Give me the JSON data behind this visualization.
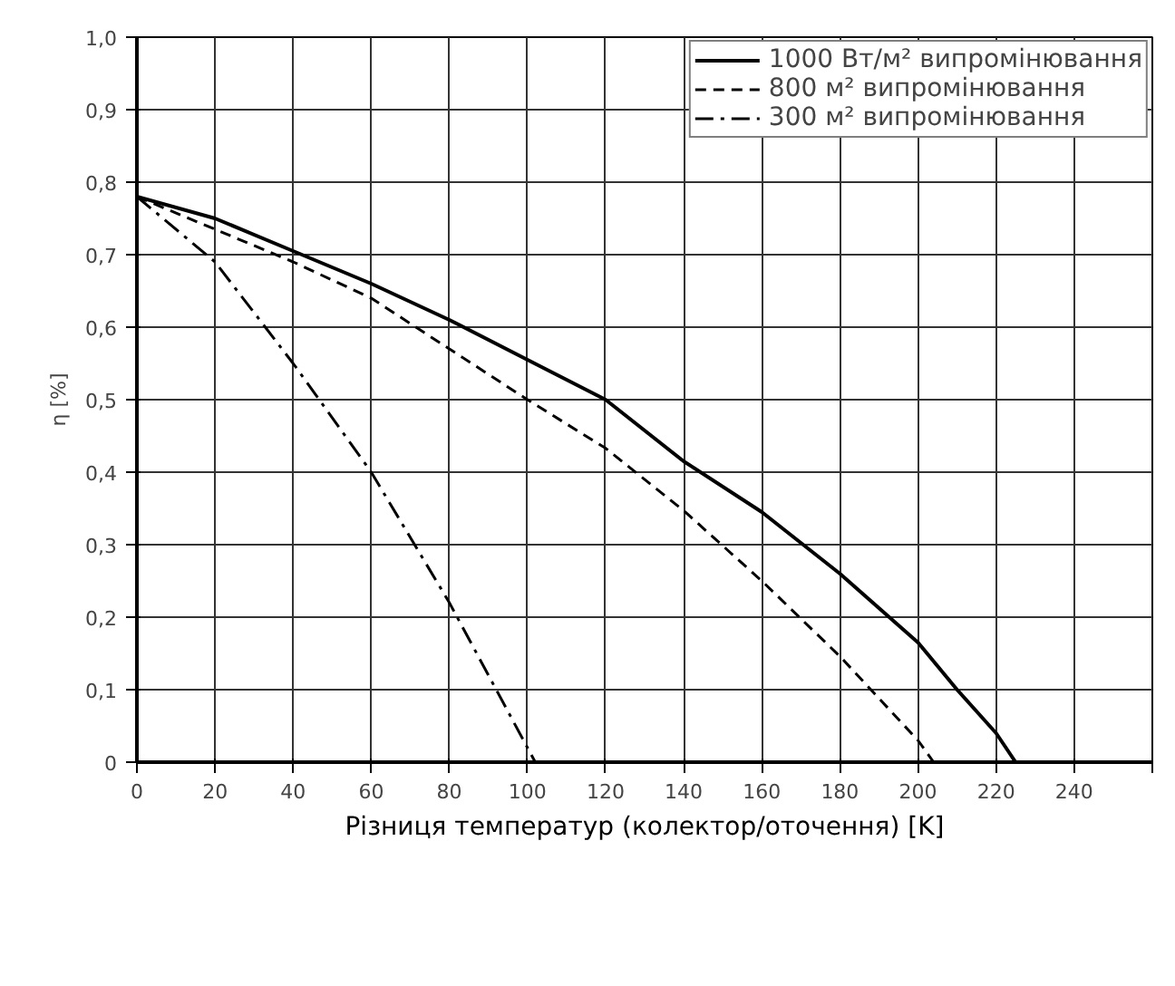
{
  "chart_data": {
    "type": "line",
    "xlabel": "Різниця температур (колектор/оточення) [K]",
    "ylabel": "η [%]",
    "xlim": [
      0,
      260
    ],
    "ylim": [
      0,
      1.0
    ],
    "xticks": [
      0,
      20,
      40,
      60,
      80,
      100,
      120,
      140,
      160,
      180,
      200,
      220,
      240,
      {
        "value": 260,
        "label": null
      }
    ],
    "yticks": [
      0,
      {
        "value": 0.1,
        "label": "0,1"
      },
      {
        "value": 0.2,
        "label": "0,2"
      },
      {
        "value": 0.3,
        "label": "0,3"
      },
      {
        "value": 0.4,
        "label": "0,4"
      },
      {
        "value": 0.5,
        "label": "0,5"
      },
      {
        "value": 0.6,
        "label": "0,6"
      },
      {
        "value": 0.7,
        "label": "0,7"
      },
      {
        "value": 0.8,
        "label": "0,8"
      },
      {
        "value": 0.9,
        "label": "0,9"
      },
      {
        "value": 1.0,
        "label": "1,0"
      }
    ],
    "grid": true,
    "legend": "top right",
    "marker": "none",
    "series": [
      {
        "name": "1000 Вт/м² випромінювання",
        "color": "#000000",
        "line_style": "solid",
        "x": [
          0,
          20,
          40,
          60,
          80,
          100,
          120,
          140,
          160,
          180,
          200,
          210,
          220,
          225
        ],
        "values": [
          0.78,
          0.75,
          0.705,
          0.66,
          0.61,
          0.555,
          0.5,
          0.415,
          0.345,
          0.26,
          0.165,
          0.1,
          0.04,
          0
        ]
      },
      {
        "name": "800 м² випромінювання",
        "color": "#000000",
        "line_style": "dashed",
        "x": [
          0,
          20,
          40,
          60,
          80,
          100,
          120,
          140,
          160,
          180,
          200,
          204
        ],
        "values": [
          0.78,
          0.735,
          0.69,
          0.64,
          0.57,
          0.5,
          0.433,
          0.347,
          0.25,
          0.146,
          0.03,
          0
        ]
      },
      {
        "name": "300 м² випромінювання",
        "color": "#000000",
        "line_style": "dashdot",
        "x": [
          0,
          20,
          40,
          60,
          80,
          100,
          102
        ],
        "values": [
          0.78,
          0.69,
          0.55,
          0.4,
          0.22,
          0.02,
          0
        ]
      }
    ]
  }
}
